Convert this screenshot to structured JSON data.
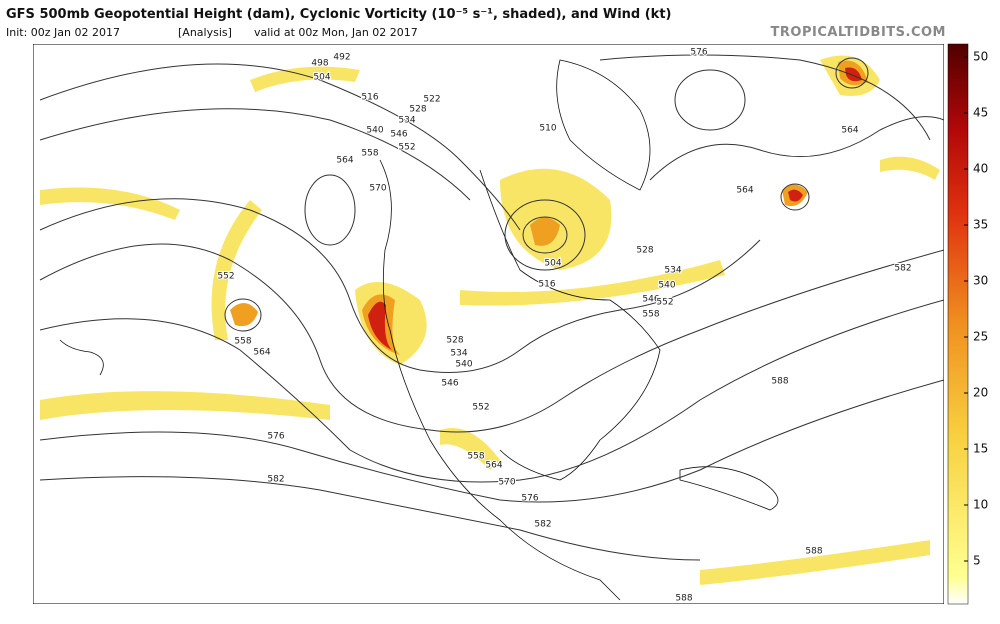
{
  "header": {
    "title": "GFS 500mb Geopotential Height (dam), Cyclonic Vorticity (10⁻⁵ s⁻¹, shaded), and Wind (kt)",
    "init": "Init: 00z Jan 02 2017",
    "run": "[Analysis]",
    "valid": "valid at 00z Mon, Jan 02 2017",
    "source": "TROPICALTIDBITS.COM"
  },
  "colorbar": {
    "ticks": [
      5,
      10,
      15,
      20,
      25,
      30,
      35,
      40,
      45,
      50
    ]
  },
  "contour_labels": [
    "492",
    "498",
    "504",
    "516",
    "522",
    "528",
    "534",
    "540",
    "546",
    "552",
    "558",
    "564",
    "570",
    "576",
    "564",
    "564",
    "582",
    "510",
    "504",
    "516",
    "528",
    "534",
    "540",
    "546",
    "552",
    "558",
    "552",
    "558",
    "564",
    "528",
    "534",
    "540",
    "546",
    "552",
    "558",
    "564",
    "570",
    "576",
    "582",
    "576",
    "582",
    "588",
    "588",
    "588"
  ]
}
